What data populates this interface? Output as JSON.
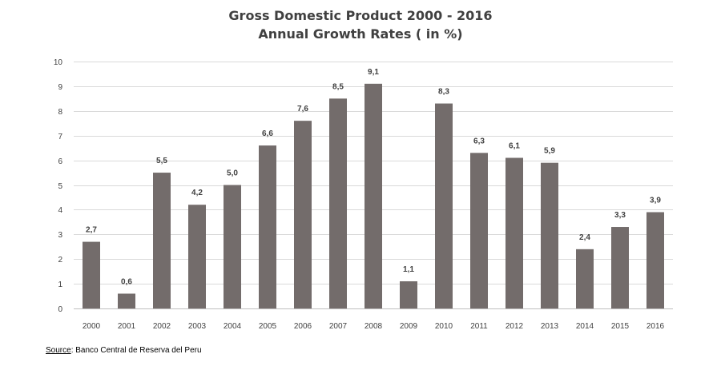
{
  "chart_data": {
    "type": "bar",
    "title": "Gross Domestic Product 2000 - 2016",
    "subtitle": "Annual Growth Rates ( in %)",
    "xlabel": "",
    "ylabel": "",
    "ylim": [
      0,
      10
    ],
    "yticks": [
      "0",
      "1",
      "2",
      "3",
      "4",
      "5",
      "6",
      "7",
      "8",
      "9",
      "10"
    ],
    "grid": true,
    "categories": [
      "2000",
      "2001",
      "2002",
      "2003",
      "2004",
      "2005",
      "2006",
      "2007",
      "2008",
      "2009",
      "2010",
      "2011",
      "2012",
      "2013",
      "2014",
      "2015",
      "2016"
    ],
    "values": [
      2.7,
      0.6,
      5.5,
      4.2,
      5.0,
      6.6,
      7.6,
      8.5,
      9.1,
      1.1,
      8.3,
      6.3,
      6.1,
      5.9,
      2.4,
      3.3,
      3.9
    ],
    "value_labels": [
      "2,7",
      "0,6",
      "5,5",
      "4,2",
      "5,0",
      "6,6",
      "7,6",
      "8,5",
      "9,1",
      "1,1",
      "8,3",
      "6,3",
      "6,1",
      "5,9",
      "2,4",
      "3,3",
      "3,9"
    ],
    "bar_color": "#736c6b"
  },
  "source": {
    "label": "Source",
    "text": ": Banco Central de Reserva del Peru"
  }
}
